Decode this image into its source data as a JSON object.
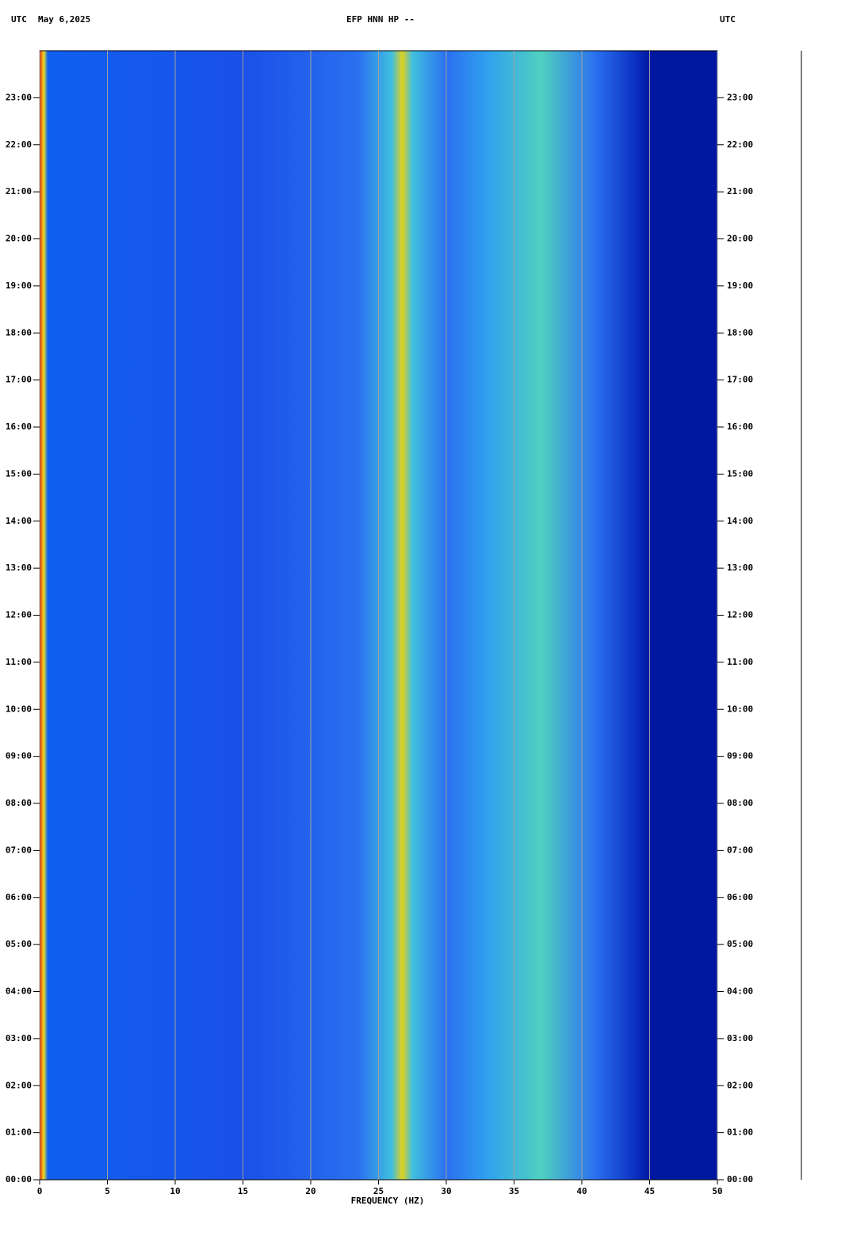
{
  "chart_data": {
    "type": "spectrogram",
    "title": "EFP HNN HP --",
    "timezone_left": "UTC",
    "date": "May 6,2025",
    "timezone_right": "UTC",
    "xlabel": "FREQUENCY (HZ)",
    "xlim": [
      0,
      50
    ],
    "xticks": [
      0,
      5,
      10,
      15,
      20,
      25,
      30,
      35,
      40,
      45,
      50
    ],
    "ylim": [
      0,
      24
    ],
    "yticks": [
      {
        "value": 0,
        "label": "00:00"
      },
      {
        "value": 1,
        "label": "01:00"
      },
      {
        "value": 2,
        "label": "02:00"
      },
      {
        "value": 3,
        "label": "03:00"
      },
      {
        "value": 4,
        "label": "04:00"
      },
      {
        "value": 5,
        "label": "05:00"
      },
      {
        "value": 6,
        "label": "06:00"
      },
      {
        "value": 7,
        "label": "07:00"
      },
      {
        "value": 8,
        "label": "08:00"
      },
      {
        "value": 9,
        "label": "09:00"
      },
      {
        "value": 10,
        "label": "10:00"
      },
      {
        "value": 11,
        "label": "11:00"
      },
      {
        "value": 12,
        "label": "12:00"
      },
      {
        "value": 13,
        "label": "13:00"
      },
      {
        "value": 14,
        "label": "14:00"
      },
      {
        "value": 15,
        "label": "15:00"
      },
      {
        "value": 16,
        "label": "16:00"
      },
      {
        "value": 17,
        "label": "17:00"
      },
      {
        "value": 18,
        "label": "18:00"
      },
      {
        "value": 19,
        "label": "19:00"
      },
      {
        "value": 20,
        "label": "20:00"
      },
      {
        "value": 21,
        "label": "21:00"
      },
      {
        "value": 22,
        "label": "22:00"
      },
      {
        "value": 23,
        "label": "23:00"
      }
    ],
    "grid": true
  }
}
